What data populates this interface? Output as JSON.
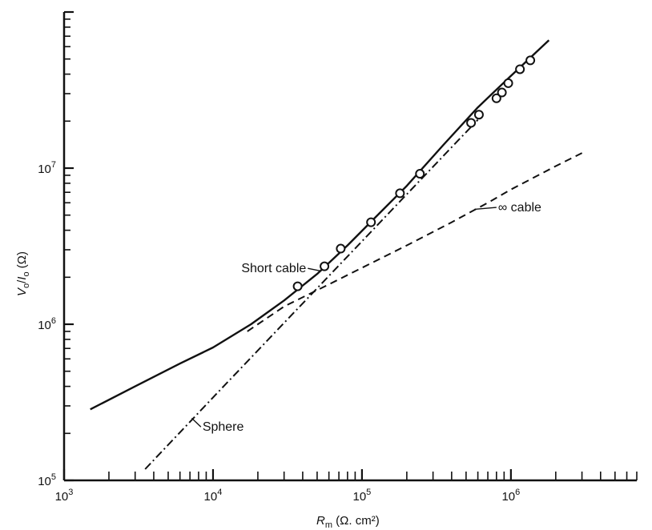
{
  "chart_data": {
    "type": "line",
    "title": "",
    "xlabel": "R_m (Ω.cm²)",
    "ylabel": "V_o / I_o (Ω)",
    "xlabel_parts": {
      "symbol": "R",
      "sub": "m",
      "units": " (Ω. cm²)"
    },
    "ylabel_parts": {
      "v": "V",
      "v_sub": "o",
      "slash": "/",
      "i": "I",
      "i_sub": "o",
      "units": "  (Ω)"
    },
    "x_scale": "log",
    "y_scale": "log",
    "xlim": [
      1000,
      7000000
    ],
    "ylim": [
      100000,
      100000000
    ],
    "grid": false,
    "x_ticks": [
      {
        "value": 1000,
        "base": "10",
        "exp": "3"
      },
      {
        "value": 10000,
        "base": "10",
        "exp": "4"
      },
      {
        "value": 100000,
        "base": "10",
        "exp": "5"
      },
      {
        "value": 1000000,
        "base": "10",
        "exp": "6"
      }
    ],
    "y_ticks": [
      {
        "value": 100000,
        "base": "10",
        "exp": "5"
      },
      {
        "value": 1000000,
        "base": "10",
        "exp": "6"
      },
      {
        "value": 10000000,
        "base": "10",
        "exp": "7"
      }
    ],
    "series": [
      {
        "name": "Short cable",
        "style": "solid",
        "x": [
          1500,
          3000,
          6000,
          10000,
          18000,
          30000,
          50000,
          80000,
          130000,
          200000,
          350000,
          600000,
          1000000,
          1800000
        ],
        "y": [
          285000,
          400000,
          560000,
          710000,
          1000000,
          1420000,
          2100000,
          3200000,
          5100000,
          7700000,
          14000000,
          24500000,
          39000000,
          66000000
        ]
      },
      {
        "name": "∞ cable",
        "style": "dashed",
        "x": [
          17000,
          30000,
          60000,
          100000,
          200000,
          400000,
          700000,
          1000000,
          2000000,
          3000000
        ],
        "y": [
          900000,
          1300000,
          1800000,
          2300000,
          3200000,
          4500000,
          6000000,
          7300000,
          10300000,
          12500000
        ]
      },
      {
        "name": "Sphere",
        "style": "dash-dot",
        "x": [
          3500,
          10000,
          30000,
          100000,
          300000,
          600000
        ],
        "y": [
          118000,
          340000,
          1020000,
          3400000,
          10200000,
          20400000
        ]
      },
      {
        "name": "data",
        "style": "points",
        "x": [
          37000,
          56000,
          72000,
          115000,
          180000,
          245000,
          540000,
          610000,
          800000,
          870000,
          960000,
          1150000,
          1350000
        ],
        "y": [
          1750000,
          2350000,
          3050000,
          4500000,
          6900000,
          9200000,
          19500000,
          22000000,
          28000000,
          30500000,
          35000000,
          43000000,
          49000000
        ]
      }
    ],
    "annotations": [
      {
        "text": "Short cable",
        "x": 15500,
        "y": 2280000,
        "leader_to": [
          52000,
          2200000
        ]
      },
      {
        "text": "∞ cable",
        "x": 820000,
        "y": 5600000,
        "leader_to": [
          570000,
          5450000
        ]
      },
      {
        "text": "Sphere",
        "x": 8500,
        "y": 220000,
        "leader_to": [
          7200,
          250000
        ]
      }
    ]
  }
}
